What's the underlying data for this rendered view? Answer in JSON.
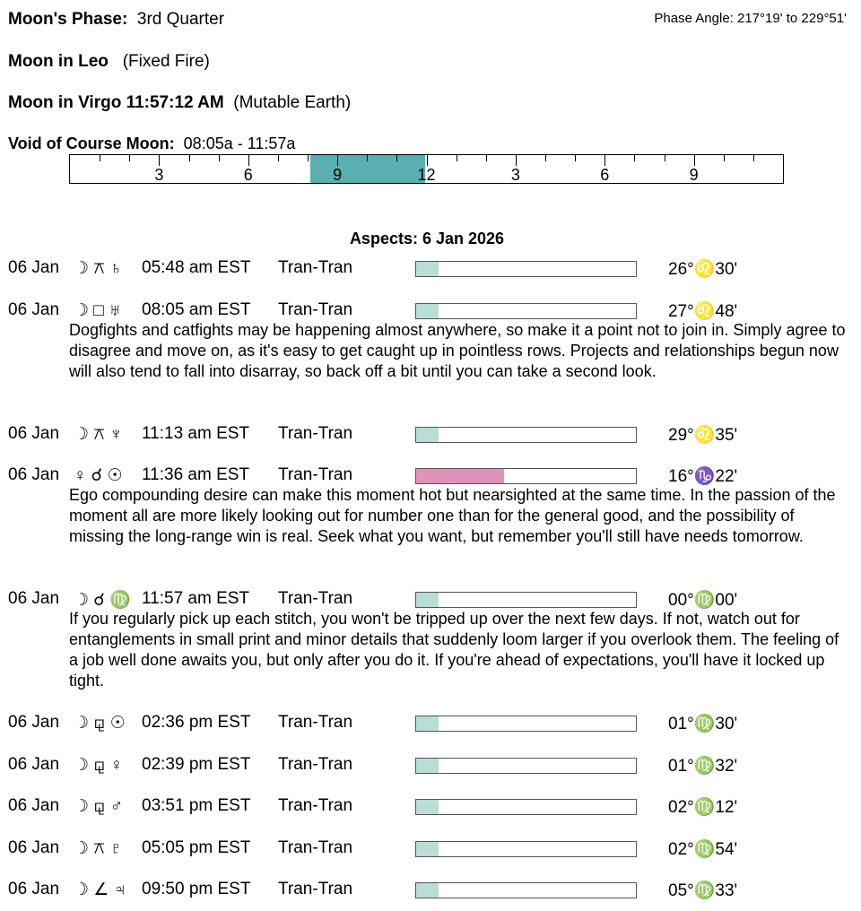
{
  "header": {
    "phase_label": "Moon's Phase:",
    "phase_value": "3rd Quarter",
    "phase_angle": "Phase Angle:  217°19' to 229°51'",
    "moon_sign1_label": "Moon in Leo",
    "moon_sign1_note": "(Fixed Fire)",
    "moon_sign2_label": "Moon in Virgo 11:57:12 AM",
    "moon_sign2_note": "(Mutable Earth)",
    "voc_label": "Void of Course Moon:",
    "voc_value": "08:05a -  11:57a"
  },
  "timeline": {
    "hours": 24,
    "voc_start_hour": 8.083,
    "voc_end_hour": 11.95,
    "voc_color": "#5aafb0",
    "labels": [
      "3",
      "6",
      "9",
      "12",
      "3",
      "6",
      "9"
    ]
  },
  "aspects_title": "Aspects: 6 Jan 2026",
  "aspects": [
    {
      "date": "06 Jan",
      "glyphs": "☽ ⚻ ♄",
      "time": "05:48 am EST",
      "type": "Tran-Tran",
      "strength": 0.1,
      "color": "#b9ddd7",
      "position": "26°♌30'",
      "text": ""
    },
    {
      "date": "06 Jan",
      "glyphs": "☽ □ ♅",
      "time": "08:05 am EST",
      "type": "Tran-Tran",
      "strength": 0.1,
      "color": "#b9ddd7",
      "position": "27°♌48'",
      "text": "Dogfights and catfights may be happening almost anywhere, so make it a point not to join in. Simply agree to disagree and move on, as it's easy to get caught up in pointless rows. Projects and relationships begun now will also tend to fall into disarray, so back off a bit until you can take a second look."
    },
    {
      "date": "06 Jan",
      "glyphs": "☽ ⚻ ♆",
      "time": "11:13 am EST",
      "type": "Tran-Tran",
      "strength": 0.1,
      "color": "#b9ddd7",
      "position": "29°♌35'",
      "text": ""
    },
    {
      "date": "06 Jan",
      "glyphs": "♀ ☌ ☉",
      "time": "11:36 am EST",
      "type": "Tran-Tran",
      "strength": 0.4,
      "color": "#e292b8",
      "position": "16°♑22'",
      "text": "Ego compounding desire can make this moment hot but nearsighted at the same time. In the passion of the moment all are more likely looking out for number one than for the general good, and the possibility of missing the long-range win is real. Seek what you want, but remember you'll still have needs tomorrow."
    },
    {
      "date": "06 Jan",
      "glyphs": "☽ ☌ ♍",
      "time": "11:57 am EST",
      "type": "Tran-Tran",
      "strength": 0.1,
      "color": "#b9ddd7",
      "position": "00°♍00'",
      "text": "If you regularly pick up each stitch, you won't be tripped up over the next few days. If not, watch out for entanglements in small print and minor details that suddenly loom larger if you overlook them. The feeling of a job well done awaits you, but only after you do it. If you're ahead of expectations, you'll have it locked up tight."
    },
    {
      "date": "06 Jan",
      "glyphs": "☽ ⚼ ☉",
      "time": "02:36 pm EST",
      "type": "Tran-Tran",
      "strength": 0.1,
      "color": "#b9ddd7",
      "position": "01°♍30'",
      "text": ""
    },
    {
      "date": "06 Jan",
      "glyphs": "☽ ⚼ ♀",
      "time": "02:39 pm EST",
      "type": "Tran-Tran",
      "strength": 0.1,
      "color": "#b9ddd7",
      "position": "01°♍32'",
      "text": ""
    },
    {
      "date": "06 Jan",
      "glyphs": "☽ ⚼ ♂",
      "time": "03:51 pm EST",
      "type": "Tran-Tran",
      "strength": 0.1,
      "color": "#b9ddd7",
      "position": "02°♍12'",
      "text": ""
    },
    {
      "date": "06 Jan",
      "glyphs": "☽ ⚻ ♇",
      "time": "05:05 pm EST",
      "type": "Tran-Tran",
      "strength": 0.1,
      "color": "#b9ddd7",
      "position": "02°♍54'",
      "text": ""
    },
    {
      "date": "06 Jan",
      "glyphs": "☽ ∠ ♃",
      "time": "09:50 pm EST",
      "type": "Tran-Tran",
      "strength": 0.1,
      "color": "#b9ddd7",
      "position": "05°♍33'",
      "text": ""
    }
  ]
}
